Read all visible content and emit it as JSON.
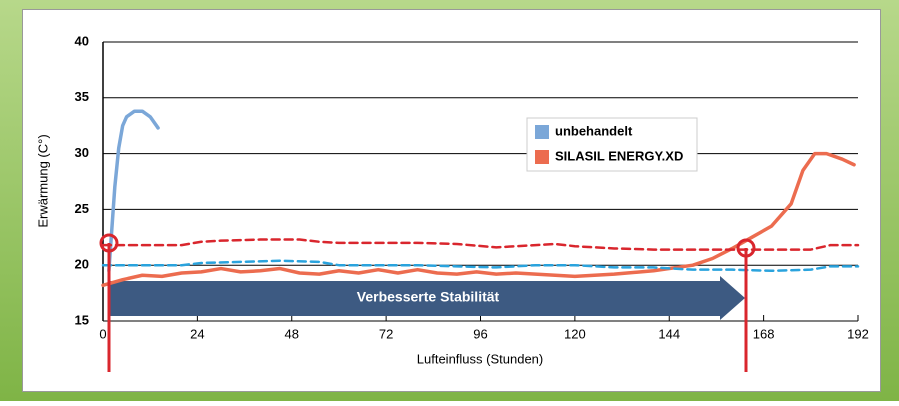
{
  "chart_data": {
    "type": "line",
    "ylabel": "Erwärmung (C°)",
    "xlabel": "Lufteinfluss (Stunden)",
    "annotation": "Verbesserte Stabilität",
    "xlim": [
      0,
      192
    ],
    "xticks": [
      0,
      24,
      48,
      72,
      96,
      120,
      144,
      168,
      192
    ],
    "ylim": [
      15,
      40
    ],
    "yticks": [
      15,
      20,
      25,
      30,
      35,
      40
    ],
    "grid": true,
    "legend": "upper center",
    "series": [
      {
        "name": "unbehandelt",
        "color": "#7ba7d8",
        "dashed": false,
        "x": [
          1.5,
          2,
          3,
          4,
          5,
          6,
          8,
          10,
          12,
          14
        ],
        "values": [
          19.5,
          22,
          27,
          30.5,
          32.5,
          33.3,
          33.8,
          33.8,
          33.3,
          32.3
        ]
      },
      {
        "name": "SILASIL ENERGY.XD",
        "color": "#ec6c4f",
        "dashed": false,
        "x": [
          0,
          5,
          10,
          15,
          20,
          25,
          30,
          35,
          40,
          45,
          50,
          55,
          60,
          65,
          70,
          75,
          80,
          85,
          90,
          95,
          100,
          105,
          110,
          120,
          130,
          140,
          150,
          155,
          160,
          165,
          170,
          175,
          178,
          181,
          184,
          188,
          191
        ],
        "values": [
          18.2,
          18.7,
          19.1,
          19.0,
          19.3,
          19.4,
          19.7,
          19.4,
          19.5,
          19.7,
          19.3,
          19.2,
          19.5,
          19.3,
          19.6,
          19.3,
          19.6,
          19.3,
          19.2,
          19.4,
          19.2,
          19.3,
          19.2,
          19.0,
          19.2,
          19.5,
          20.0,
          20.6,
          21.5,
          22.5,
          23.5,
          25.5,
          28.5,
          30.0,
          30.0,
          29.5,
          29.0
        ]
      },
      {
        "color": "#d9262d",
        "dashed": true,
        "x": [
          0,
          10,
          20,
          25,
          30,
          40,
          50,
          55,
          60,
          70,
          80,
          90,
          100,
          110,
          115,
          120,
          130,
          140,
          150,
          160,
          170,
          180,
          185,
          192
        ],
        "values": [
          21.8,
          21.8,
          21.8,
          22.1,
          22.2,
          22.3,
          22.3,
          22.1,
          22.0,
          22.0,
          22.0,
          21.9,
          21.6,
          21.8,
          21.9,
          21.7,
          21.5,
          21.4,
          21.4,
          21.4,
          21.4,
          21.4,
          21.8,
          21.8
        ]
      },
      {
        "color": "#2aa3dd",
        "dashed": true,
        "x": [
          0,
          10,
          20,
          25,
          35,
          45,
          55,
          60,
          70,
          80,
          90,
          100,
          110,
          120,
          130,
          140,
          150,
          160,
          170,
          180,
          185,
          192
        ],
        "values": [
          20.0,
          20.0,
          20.0,
          20.2,
          20.3,
          20.4,
          20.3,
          20.0,
          20.0,
          20.0,
          19.9,
          19.8,
          20.0,
          20.0,
          19.8,
          19.8,
          19.6,
          19.6,
          19.5,
          19.6,
          19.9,
          19.9
        ]
      }
    ]
  }
}
